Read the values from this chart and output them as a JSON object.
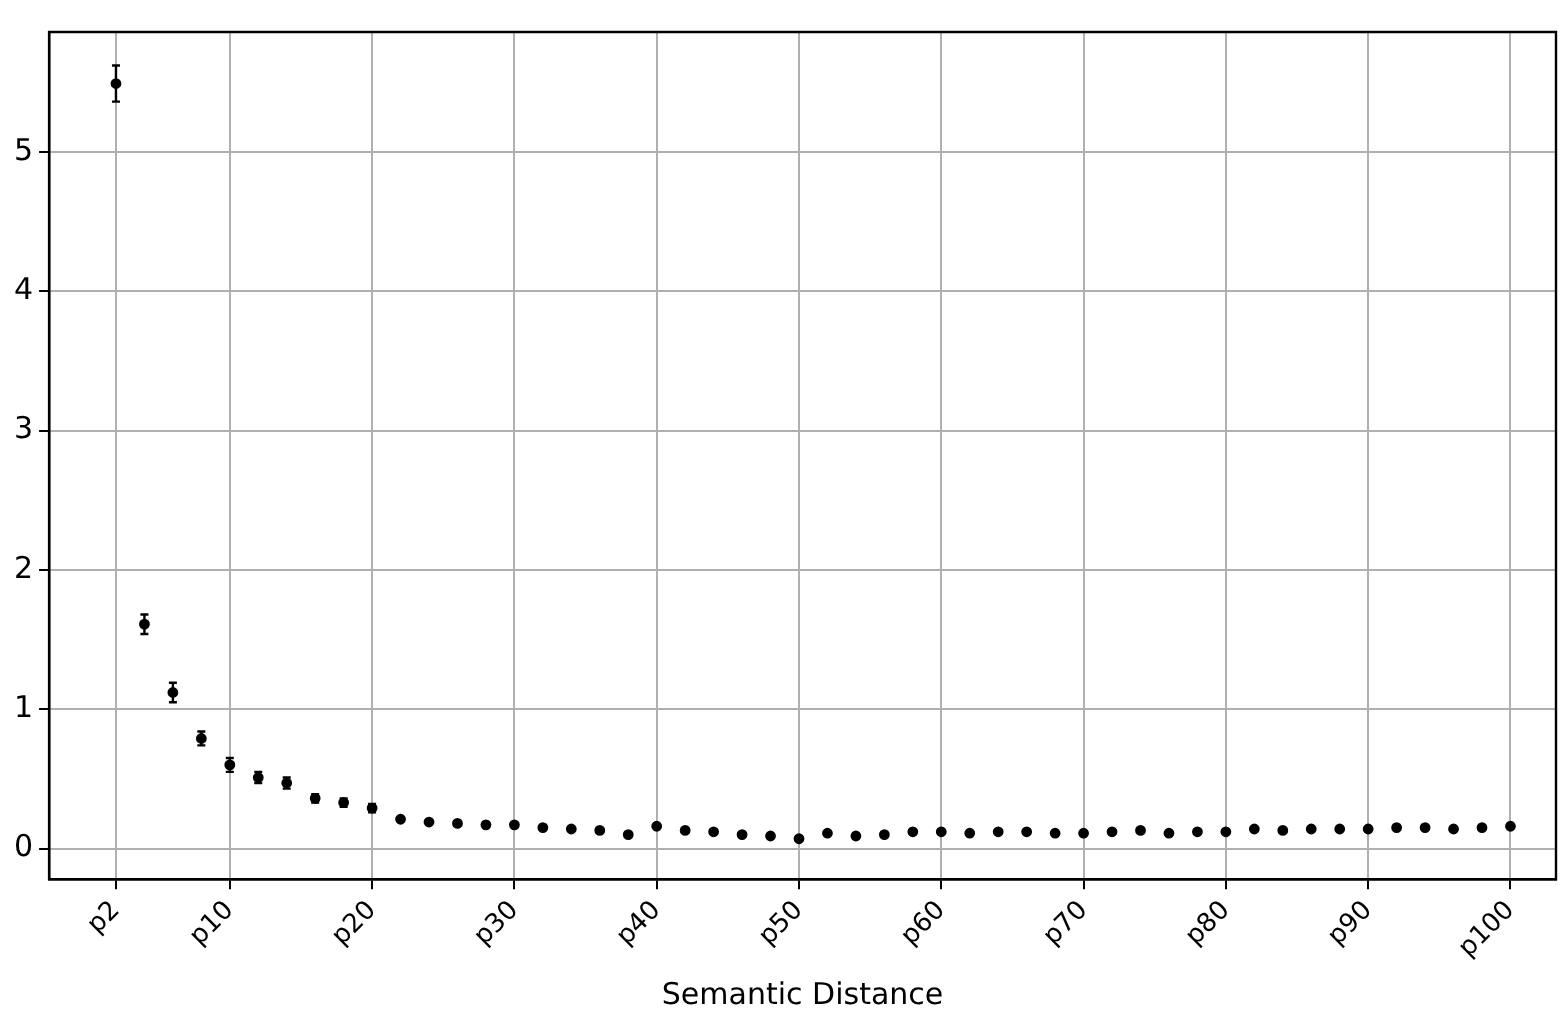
{
  "chart_data": {
    "type": "scatter",
    "xlabel": "Semantic Distance",
    "categories": [
      "p2",
      null,
      null,
      null,
      "p10",
      null,
      null,
      null,
      null,
      "p20",
      null,
      null,
      null,
      null,
      "p30",
      null,
      null,
      null,
      null,
      "p40",
      null,
      null,
      null,
      null,
      "p50",
      null,
      null,
      null,
      null,
      "p60",
      null,
      null,
      null,
      null,
      "p70",
      null,
      null,
      null,
      null,
      "p80",
      null,
      null,
      null,
      null,
      "p90",
      null,
      null,
      null,
      null,
      "p100"
    ],
    "values": [
      5.49,
      1.61,
      1.12,
      0.79,
      0.6,
      0.51,
      0.47,
      0.36,
      0.33,
      0.29,
      0.21,
      0.19,
      0.18,
      0.17,
      0.17,
      0.15,
      0.14,
      0.13,
      0.1,
      0.16,
      0.13,
      0.12,
      0.1,
      0.09,
      0.07,
      0.11,
      0.09,
      0.1,
      0.12,
      0.12,
      0.11,
      0.12,
      0.12,
      0.11,
      0.11,
      0.12,
      0.13,
      0.11,
      0.12,
      0.12,
      0.14,
      0.13,
      0.14,
      0.14,
      0.14,
      0.15,
      0.15,
      0.14,
      0.15,
      0.16
    ],
    "errors": [
      0.13,
      0.07,
      0.07,
      0.05,
      0.05,
      0.04,
      0.04,
      0.03,
      0.03,
      0.03,
      null,
      null,
      null,
      null,
      null,
      null,
      null,
      null,
      null,
      null,
      null,
      null,
      null,
      null,
      null,
      null,
      null,
      null,
      null,
      null,
      null,
      null,
      null,
      null,
      null,
      null,
      null,
      null,
      null,
      null,
      null,
      null,
      null,
      null,
      null,
      null,
      null,
      null,
      null,
      null
    ],
    "color": "#000000",
    "marker": "circle",
    "ylim": [
      -0.22,
      5.86
    ],
    "yticks": [
      0,
      1,
      2,
      3,
      4,
      5
    ],
    "grid": true
  }
}
